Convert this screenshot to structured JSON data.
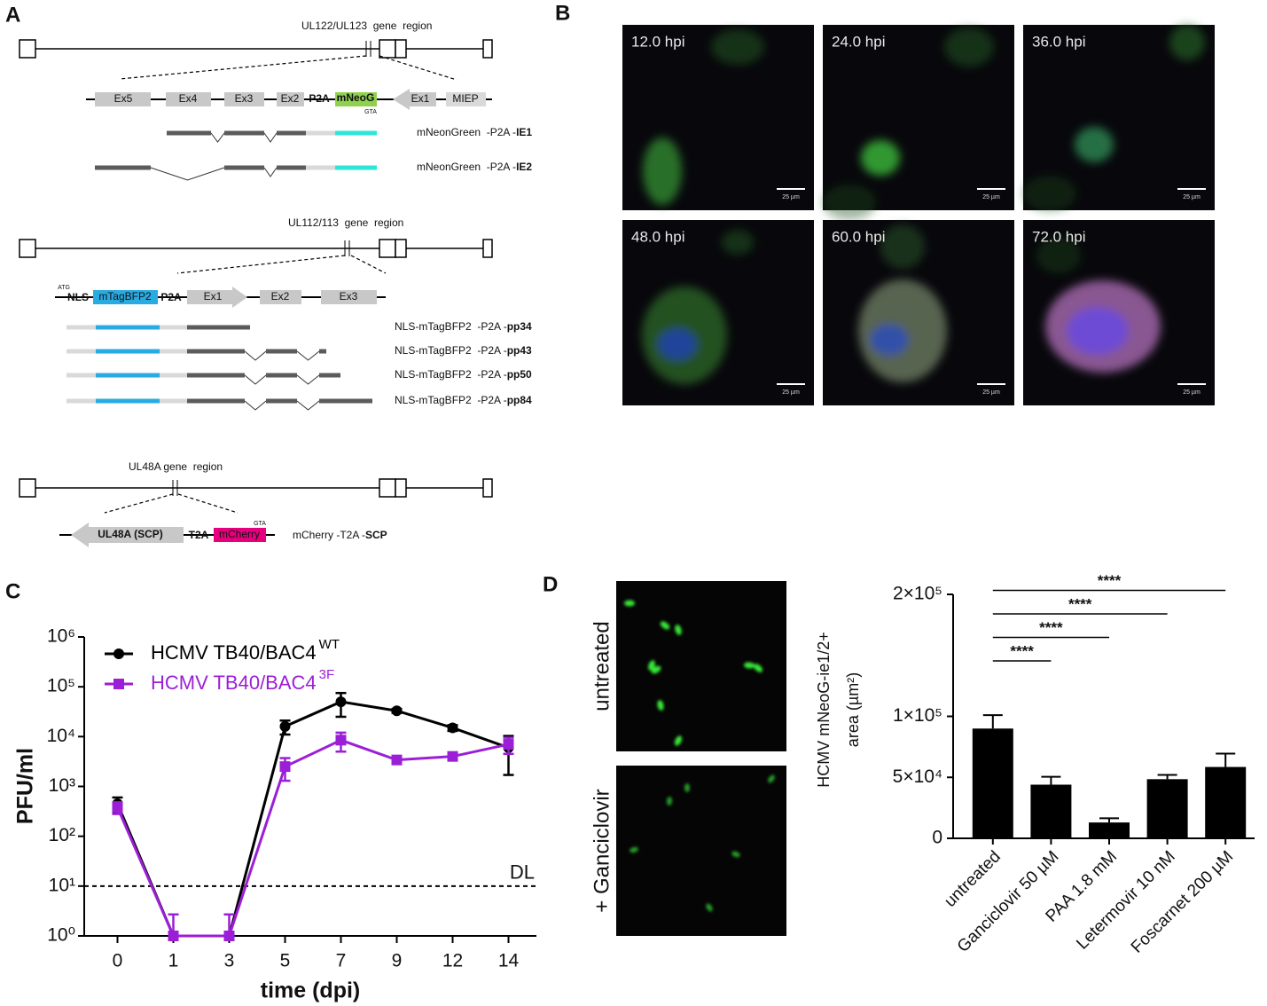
{
  "panel_labels": [
    "A",
    "B",
    "C",
    "D"
  ],
  "panel_a": {
    "ie": {
      "region": "UL122/UL123  gene  region",
      "elements": [
        "Ex5",
        "Ex4",
        "Ex3",
        "Ex2",
        "P2A",
        "mNeoG",
        "GTA",
        "Ex1",
        "MIEP"
      ],
      "transcripts": [
        {
          "text": "mNeonGreen  -P2A -",
          "bold": "IE1"
        },
        {
          "text": "mNeonGreen  -P2A -",
          "bold": "IE2"
        }
      ]
    },
    "ul112": {
      "region": "UL112/113  gene  region",
      "elements": [
        "ATG",
        "NLS",
        "mTagBFP2",
        "P2A",
        "Ex1",
        "Ex2",
        "Ex3"
      ],
      "transcripts": [
        {
          "text": "NLS-mTagBFP2  -P2A -",
          "bold": "pp34"
        },
        {
          "text": "NLS-mTagBFP2  -P2A -",
          "bold": "pp43"
        },
        {
          "text": "NLS-mTagBFP2  -P2A -",
          "bold": "pp50"
        },
        {
          "text": "NLS-mTagBFP2  -P2A -",
          "bold": "pp84"
        }
      ]
    },
    "ul48a": {
      "region": "UL48A gene  region",
      "elements": [
        "UL48A (SCP)",
        "T2A",
        "mCherry",
        "GTA"
      ],
      "transcripts": [
        {
          "text": "mCherry -T2A -",
          "bold": "SCP"
        }
      ]
    }
  },
  "panel_b": {
    "images": [
      {
        "label": "12.0 hpi",
        "scale": "25 µm"
      },
      {
        "label": "24.0 hpi",
        "scale": "25 µm"
      },
      {
        "label": "36.0 hpi",
        "scale": "25 µm"
      },
      {
        "label": "48.0 hpi",
        "scale": "25 µm"
      },
      {
        "label": "60.0 hpi",
        "scale": "25 µm"
      },
      {
        "label": "72.0 hpi",
        "scale": "25 µm"
      }
    ]
  },
  "panel_d_images": [
    "untreated",
    "+ Ganciclovir"
  ],
  "chart_data": [
    {
      "type": "line",
      "ylabel": "PFU/ml",
      "xlabel": "time (dpi)",
      "categories": [
        "0",
        "1",
        "3",
        "5",
        "7",
        "9",
        "12",
        "14"
      ],
      "log_scale": true,
      "ylim": [
        1,
        1000000
      ],
      "yticks": [
        {
          "value": 1,
          "label": "10⁰"
        },
        {
          "value": 10,
          "label": "10¹"
        },
        {
          "value": 100,
          "label": "10²"
        },
        {
          "value": 1000,
          "label": "10³"
        },
        {
          "value": 10000,
          "label": "10⁴"
        },
        {
          "value": 100000,
          "label": "10⁵"
        },
        {
          "value": 1000000,
          "label": "10⁶"
        }
      ],
      "reference_line": {
        "value": 10,
        "label": "DL"
      },
      "legend": "upper-left",
      "series": [
        {
          "name": "HCMV TB40/BAC4",
          "superscript": "WT",
          "color": "#000000",
          "marker": "circle",
          "values": [
            450,
            1,
            1,
            16000,
            50000,
            33000,
            15000,
            6000
          ],
          "errors": [
            150,
            0,
            0,
            5000,
            25000,
            3000,
            2000,
            4300
          ]
        },
        {
          "name": "HCMV TB40/BAC4",
          "superscript": "3F",
          "color": "#9b1fd6",
          "marker": "square",
          "values": [
            380,
            1,
            1,
            2500,
            8500,
            3400,
            4000,
            7000
          ],
          "errors": [
            100,
            1.7,
            1.7,
            1200,
            3500,
            400,
            500,
            2500
          ]
        }
      ]
    },
    {
      "type": "bar",
      "ylabel": [
        "HCMV mNeoG-ie1/2+",
        "area (µm²)"
      ],
      "categories": [
        "untreated",
        "Ganciclovir 50 µM",
        "PAA 1.8 mM",
        "Letermovir 10 nM",
        "Foscarnet 200 µM"
      ],
      "values": [
        90000,
        44000,
        13000,
        48500,
        58500
      ],
      "errors": [
        11000,
        6500,
        3500,
        3500,
        11000
      ],
      "color": "#000000",
      "ylim": [
        0,
        200000
      ],
      "yticks": [
        0,
        {
          "value": 50000,
          "label": "5×10⁴"
        },
        {
          "value": 100000,
          "label": "1×10⁵"
        },
        {
          "value": 200000,
          "label": "2×10⁵"
        }
      ],
      "significance": [
        {
          "from": 0,
          "to": 1,
          "label": "****"
        },
        {
          "from": 0,
          "to": 2,
          "label": "****"
        },
        {
          "from": 0,
          "to": 3,
          "label": "****"
        },
        {
          "from": 0,
          "to": 4,
          "label": "****"
        }
      ]
    }
  ]
}
